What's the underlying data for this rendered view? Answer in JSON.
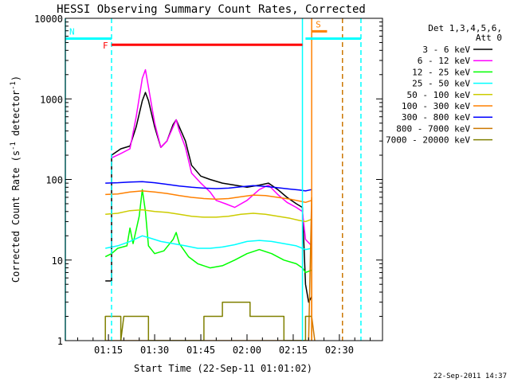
{
  "chart_data": {
    "type": "line",
    "title": "HESSI Observing Summary Count Rates, Corrected",
    "xlabel": "Start Time (22-Sep-11 01:01:02)",
    "ylabel_main": "Corrected Count Rate (s",
    "ylabel_mid": " detector",
    "ylabel_end": ")",
    "ylabel_sup": "-1",
    "y_scale": "log",
    "ylim": [
      1,
      10000
    ],
    "xlim_minutes_utc": [
      "01:01",
      "02:44"
    ],
    "x_ticks": [
      "01:15",
      "01:30",
      "01:45",
      "02:00",
      "02:15",
      "02:30"
    ],
    "y_ticks": [
      {
        "value": 1,
        "label": "1"
      },
      {
        "value": 10,
        "label": "10"
      },
      {
        "value": 100,
        "label": "100"
      },
      {
        "value": 1000,
        "label": "1000"
      },
      {
        "value": 10000,
        "label": "10000"
      }
    ],
    "legend": {
      "placement": "right",
      "header": [
        "Det 1,3,4,5,6,",
        "Att 0"
      ]
    },
    "series": [
      {
        "name": "3 - 6 keV",
        "color": "#000000",
        "points": [
          [
            "01:14",
            5.5
          ],
          [
            "01:16",
            5.5
          ],
          [
            "01:16",
            200
          ],
          [
            "01:19",
            240
          ],
          [
            "01:22",
            260
          ],
          [
            "01:24",
            450
          ],
          [
            "01:26",
            950
          ],
          [
            "01:27",
            1200
          ],
          [
            "01:28",
            950
          ],
          [
            "01:30",
            450
          ],
          [
            "01:32",
            250
          ],
          [
            "01:34",
            300
          ],
          [
            "01:36",
            480
          ],
          [
            "01:37",
            550
          ],
          [
            "01:38",
            450
          ],
          [
            "01:40",
            300
          ],
          [
            "01:42",
            150
          ],
          [
            "01:45",
            110
          ],
          [
            "01:48",
            100
          ],
          [
            "01:52",
            90
          ],
          [
            "01:56",
            85
          ],
          [
            "02:00",
            80
          ],
          [
            "02:04",
            85
          ],
          [
            "02:07",
            90
          ],
          [
            "02:10",
            75
          ],
          [
            "02:13",
            60
          ],
          [
            "02:16",
            50
          ],
          [
            "02:18",
            45
          ],
          [
            "02:19",
            5
          ],
          [
            "02:20",
            3
          ],
          [
            "02:21",
            3.5
          ]
        ]
      },
      {
        "name": "6 - 12 keV",
        "color": "#ff00ff",
        "points": [
          [
            "01:16",
            185
          ],
          [
            "01:19",
            210
          ],
          [
            "01:22",
            240
          ],
          [
            "01:24",
            600
          ],
          [
            "01:26",
            1800
          ],
          [
            "01:27",
            2300
          ],
          [
            "01:28",
            1400
          ],
          [
            "01:30",
            500
          ],
          [
            "01:32",
            250
          ],
          [
            "01:34",
            300
          ],
          [
            "01:36",
            450
          ],
          [
            "01:37",
            550
          ],
          [
            "01:38",
            400
          ],
          [
            "01:40",
            250
          ],
          [
            "01:42",
            120
          ],
          [
            "01:45",
            90
          ],
          [
            "01:48",
            70
          ],
          [
            "01:50",
            55
          ],
          [
            "01:53",
            50
          ],
          [
            "01:56",
            45
          ],
          [
            "02:00",
            55
          ],
          [
            "02:04",
            75
          ],
          [
            "02:07",
            85
          ],
          [
            "02:10",
            65
          ],
          [
            "02:13",
            52
          ],
          [
            "02:16",
            45
          ],
          [
            "02:18",
            40
          ],
          [
            "02:19",
            18
          ],
          [
            "02:21",
            15
          ]
        ]
      },
      {
        "name": "12 - 25 keV",
        "color": "#00ff00",
        "points": [
          [
            "01:14",
            11
          ],
          [
            "01:16",
            12
          ],
          [
            "01:18",
            14
          ],
          [
            "01:21",
            15
          ],
          [
            "01:22",
            25
          ],
          [
            "01:23",
            16
          ],
          [
            "01:25",
            35
          ],
          [
            "01:26",
            75
          ],
          [
            "01:27",
            40
          ],
          [
            "01:28",
            15
          ],
          [
            "01:30",
            12
          ],
          [
            "01:33",
            13
          ],
          [
            "01:36",
            18
          ],
          [
            "01:37",
            22
          ],
          [
            "01:38",
            16
          ],
          [
            "01:41",
            11
          ],
          [
            "01:44",
            9
          ],
          [
            "01:48",
            8
          ],
          [
            "01:52",
            8.5
          ],
          [
            "01:56",
            10
          ],
          [
            "02:00",
            12
          ],
          [
            "02:04",
            13.5
          ],
          [
            "02:08",
            12
          ],
          [
            "02:12",
            10
          ],
          [
            "02:16",
            9
          ],
          [
            "02:18",
            8
          ],
          [
            "02:19",
            7
          ],
          [
            "02:21",
            7.5
          ]
        ]
      },
      {
        "name": "25 - 50 keV",
        "color": "#00ffff",
        "points": [
          [
            "01:14",
            14
          ],
          [
            "01:18",
            15
          ],
          [
            "01:22",
            17
          ],
          [
            "01:26",
            20
          ],
          [
            "01:28",
            19
          ],
          [
            "01:32",
            17
          ],
          [
            "01:36",
            16
          ],
          [
            "01:40",
            15
          ],
          [
            "01:44",
            14
          ],
          [
            "01:48",
            14
          ],
          [
            "01:52",
            14.5
          ],
          [
            "01:56",
            15.5
          ],
          [
            "02:00",
            17
          ],
          [
            "02:04",
            17.5
          ],
          [
            "02:08",
            17
          ],
          [
            "02:12",
            16
          ],
          [
            "02:16",
            15
          ],
          [
            "02:18",
            14
          ],
          [
            "02:19",
            13.5
          ],
          [
            "02:21",
            14
          ]
        ]
      },
      {
        "name": "50 - 100 keV",
        "color": "#cccc00",
        "points": [
          [
            "01:14",
            37
          ],
          [
            "01:18",
            38
          ],
          [
            "01:22",
            41
          ],
          [
            "01:26",
            42
          ],
          [
            "01:30",
            40
          ],
          [
            "01:34",
            39
          ],
          [
            "01:38",
            37
          ],
          [
            "01:42",
            35
          ],
          [
            "01:46",
            34
          ],
          [
            "01:50",
            34
          ],
          [
            "01:54",
            35
          ],
          [
            "01:58",
            37
          ],
          [
            "02:02",
            38
          ],
          [
            "02:06",
            37
          ],
          [
            "02:10",
            35
          ],
          [
            "02:14",
            33
          ],
          [
            "02:17",
            31
          ],
          [
            "02:19",
            30
          ],
          [
            "02:21",
            32
          ]
        ]
      },
      {
        "name": "100 - 300 keV",
        "color": "#ff8000",
        "points": [
          [
            "01:14",
            65
          ],
          [
            "01:18",
            66
          ],
          [
            "01:22",
            70
          ],
          [
            "01:26",
            72
          ],
          [
            "01:30",
            70
          ],
          [
            "01:34",
            67
          ],
          [
            "01:38",
            63
          ],
          [
            "01:42",
            60
          ],
          [
            "01:46",
            58
          ],
          [
            "01:50",
            57
          ],
          [
            "01:54",
            58
          ],
          [
            "01:58",
            61
          ],
          [
            "02:02",
            64
          ],
          [
            "02:06",
            63
          ],
          [
            "02:10",
            60
          ],
          [
            "02:14",
            57
          ],
          [
            "02:17",
            54
          ],
          [
            "02:19",
            52
          ],
          [
            "02:21",
            55
          ]
        ]
      },
      {
        "name": "300 - 800 keV",
        "color": "#0000ff",
        "points": [
          [
            "01:14",
            90
          ],
          [
            "01:18",
            91
          ],
          [
            "01:22",
            93
          ],
          [
            "01:26",
            94
          ],
          [
            "01:30",
            91
          ],
          [
            "01:34",
            87
          ],
          [
            "01:38",
            83
          ],
          [
            "01:42",
            80
          ],
          [
            "01:46",
            78
          ],
          [
            "01:50",
            77
          ],
          [
            "01:54",
            78
          ],
          [
            "01:58",
            81
          ],
          [
            "02:02",
            84
          ],
          [
            "02:06",
            82
          ],
          [
            "02:10",
            79
          ],
          [
            "02:14",
            76
          ],
          [
            "02:17",
            74
          ],
          [
            "02:19",
            72
          ],
          [
            "02:21",
            75
          ]
        ]
      },
      {
        "name": "800 - 7000 keV",
        "color": "#cc7700",
        "points": [
          [
            "01:14",
            1
          ],
          [
            "02:20",
            1
          ],
          [
            "02:21",
            60
          ],
          [
            "02:21",
            2
          ],
          [
            "02:22",
            1
          ]
        ]
      },
      {
        "name": "7000 - 20000 keV",
        "color": "#808000",
        "points": [
          [
            "01:14",
            1
          ],
          [
            "01:14",
            2
          ],
          [
            "01:19",
            2
          ],
          [
            "01:19",
            1
          ],
          [
            "01:20",
            2
          ],
          [
            "01:28",
            2
          ],
          [
            "01:28",
            1
          ],
          [
            "01:46",
            1
          ],
          [
            "01:46",
            2
          ],
          [
            "01:52",
            2
          ],
          [
            "01:52",
            3
          ],
          [
            "02:01",
            3
          ],
          [
            "02:01",
            2
          ],
          [
            "02:12",
            2
          ],
          [
            "02:12",
            1
          ],
          [
            "02:19",
            1
          ],
          [
            "02:19",
            2
          ],
          [
            "02:21",
            2
          ],
          [
            "02:21",
            1
          ]
        ]
      }
    ],
    "flag_bars": [
      {
        "label": "N",
        "color": "#00ffff",
        "segments": [
          [
            "01:01",
            "01:16"
          ],
          [
            "02:19",
            "02:37"
          ]
        ],
        "y": 5600
      },
      {
        "label": "F",
        "color": "#ff0000",
        "segments": [
          [
            "01:16",
            "02:18"
          ]
        ],
        "y": 4700
      },
      {
        "label": "S",
        "color": "#ff8000",
        "segments": [
          [
            "02:21",
            "02:26"
          ]
        ],
        "y": 6900
      }
    ],
    "vertical_lines": [
      {
        "x": "01:01",
        "color": "#00ffff",
        "style": "solid"
      },
      {
        "x": "01:16",
        "color": "#00ffff",
        "style": "dashed"
      },
      {
        "x": "02:18",
        "color": "#00ffff",
        "style": "solid"
      },
      {
        "x": "02:21",
        "color": "#ff8000",
        "style": "solid"
      },
      {
        "x": "02:31",
        "color": "#cc7700",
        "style": "dashed"
      },
      {
        "x": "02:37",
        "color": "#00ffff",
        "style": "dashed"
      }
    ]
  },
  "footer": {
    "timestamp": "22-Sep-2011 14:37"
  }
}
